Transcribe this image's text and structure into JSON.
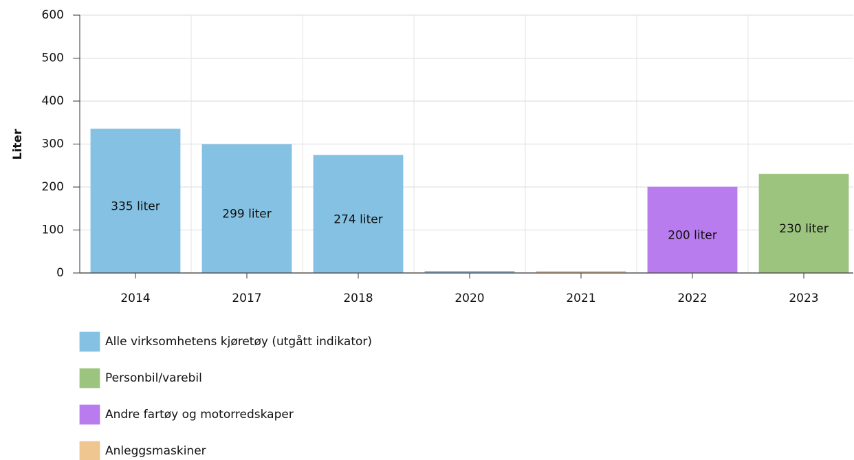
{
  "chart_data": {
    "type": "bar",
    "y_label": "Liter",
    "categories": [
      "2014",
      "2017",
      "2018",
      "2020",
      "2021",
      "2022",
      "2023"
    ],
    "series": [
      {
        "name": "Alle virksomhetens kjøretøy (utgått indikator)",
        "color": "#85c1e2",
        "values": [
          335,
          299,
          274,
          4,
          null,
          null,
          null
        ],
        "value_labels": [
          "335 liter",
          "299 liter",
          "274 liter",
          null,
          null,
          null,
          null
        ]
      },
      {
        "name": "Personbil/varebil",
        "color": "#9dc47f",
        "values": [
          null,
          null,
          null,
          null,
          null,
          null,
          230
        ],
        "value_labels": [
          null,
          null,
          null,
          null,
          null,
          null,
          "230 liter"
        ]
      },
      {
        "name": "Andre fartøy og motorredskaper",
        "color": "#b87cee",
        "values": [
          null,
          null,
          null,
          null,
          null,
          200,
          null
        ],
        "value_labels": [
          null,
          null,
          null,
          null,
          null,
          "200 liter",
          null
        ]
      },
      {
        "name": "Anleggsmaskiner",
        "color": "#f0c690",
        "values": [
          null,
          null,
          null,
          null,
          4,
          null,
          null
        ],
        "value_labels": [
          null,
          null,
          null,
          null,
          null,
          null,
          null
        ]
      }
    ],
    "ylim": [
      0,
      600
    ],
    "yticks": [
      0,
      100,
      200,
      300,
      400,
      500,
      600
    ],
    "grid": true
  }
}
